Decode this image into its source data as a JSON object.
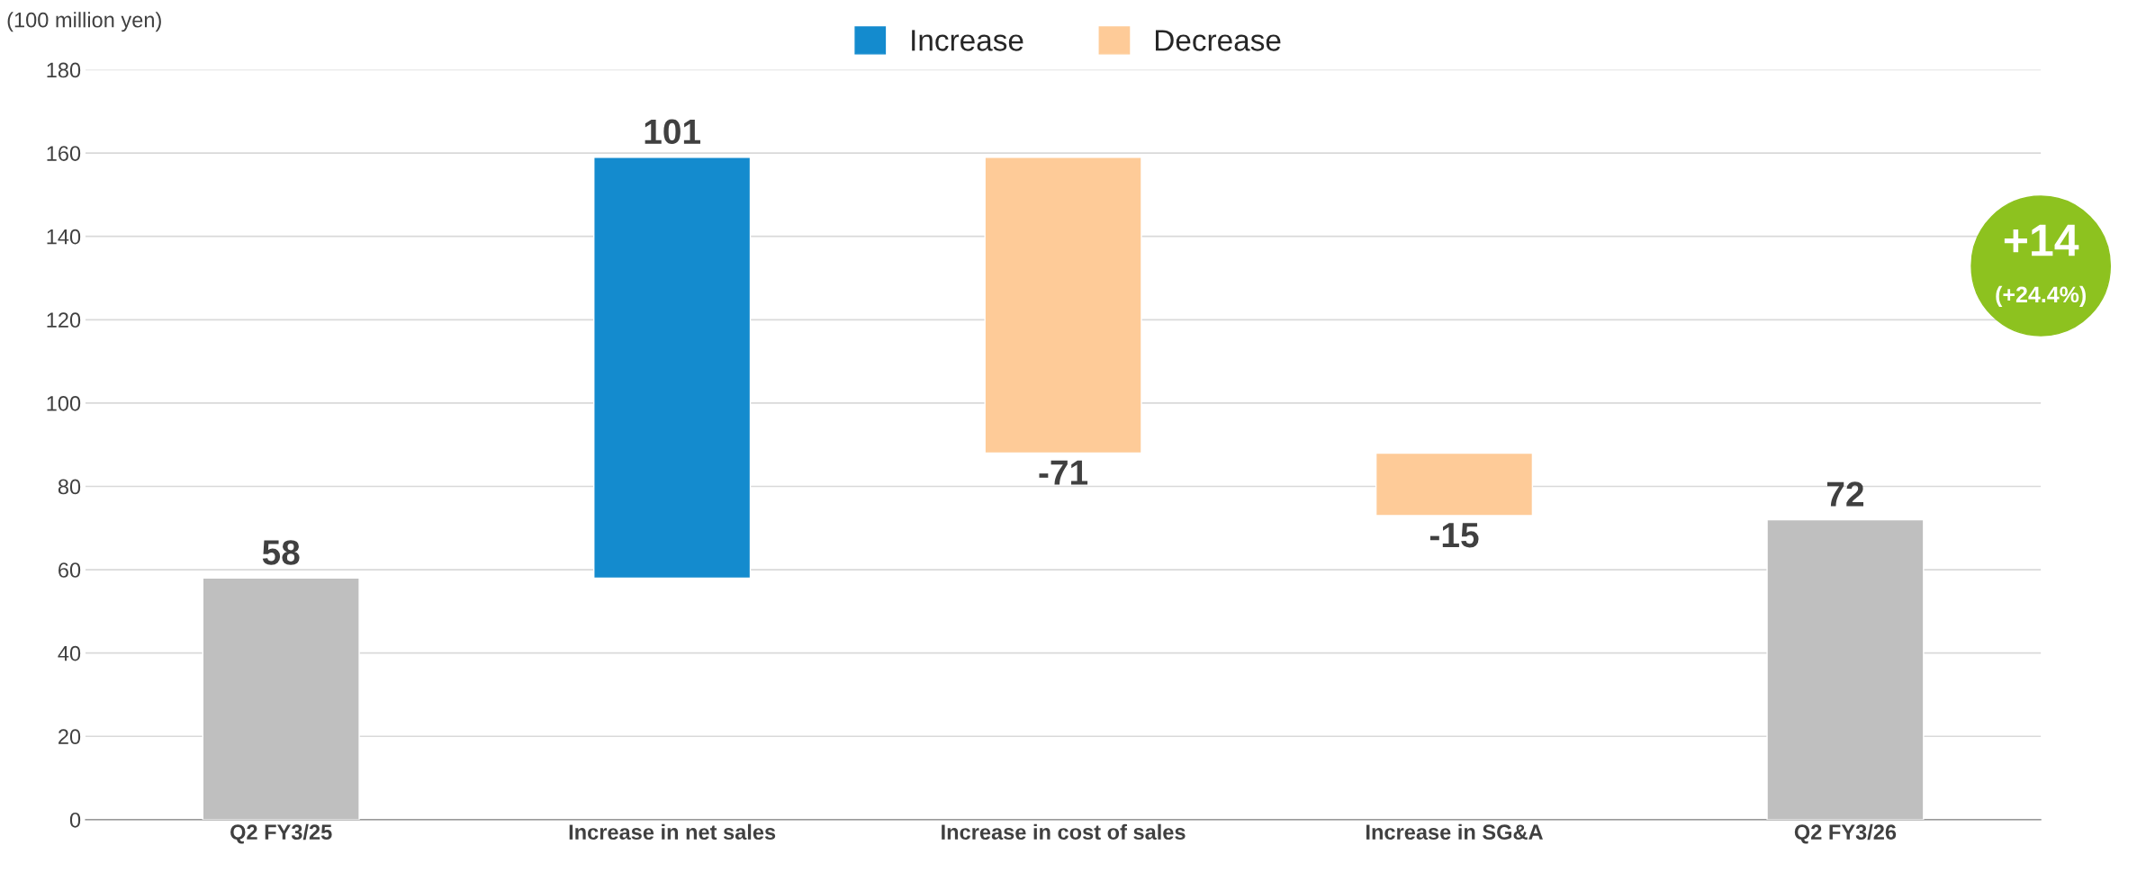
{
  "chart_data": {
    "type": "bar",
    "ylabel": "(100 million yen)",
    "categories": [
      "Q2 FY3/25",
      "Increase in net sales",
      "Increase in cost of sales",
      "Increase in SG&A",
      "Q2 FY3/26"
    ],
    "series": [
      {
        "color": "#bfbfbf",
        "values": [
          58,
          null,
          null,
          null,
          72
        ],
        "base": [
          0,
          null,
          null,
          null,
          0
        ]
      },
      {
        "name": "Increase",
        "color": "#148bce",
        "values": [
          null,
          101,
          null,
          null,
          null
        ],
        "base": [
          null,
          58,
          null,
          null,
          null
        ]
      },
      {
        "name": "Decrease",
        "color": "#fecb98",
        "values": [
          null,
          null,
          -71,
          -15,
          null
        ],
        "base": [
          null,
          null,
          159,
          88,
          null
        ]
      }
    ],
    "data_labels": true,
    "ylim": [
      0,
      180
    ],
    "yticks": [
      0,
      20,
      40,
      60,
      80,
      100,
      120,
      140,
      160,
      180
    ],
    "grid": "y",
    "legend": "top",
    "annotations": [
      "+14",
      "(+24.4%)"
    ]
  }
}
